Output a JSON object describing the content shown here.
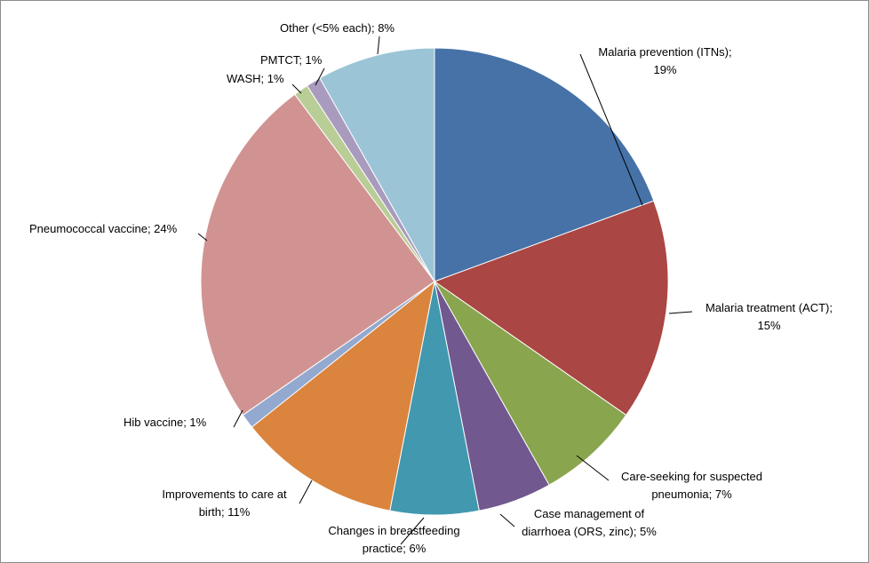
{
  "chart_data": {
    "type": "pie",
    "start_angle_deg": 0,
    "direction": "clockwise",
    "slices": [
      {
        "name": "Malaria prevention (ITNs)",
        "value": 19,
        "color": "#4672A8",
        "label_lines": [
          "Malaria prevention  (ITNs);",
          "19%"
        ]
      },
      {
        "name": "Malaria treatment (ACT)",
        "value": 15,
        "color": "#AA4643",
        "label_lines": [
          "Malaria treatment  (ACT);",
          "15%"
        ]
      },
      {
        "name": "Care-seeking for suspected pneumonia",
        "value": 7,
        "color": "#89A54E",
        "label_lines": [
          "Care-seeking for suspected",
          "pneumonia;  7%"
        ]
      },
      {
        "name": "Case management of diarrhoea (ORS, zinc)",
        "value": 5,
        "color": "#71588F",
        "label_lines": [
          "Case management of",
          "diarrhoea (ORS, zinc); 5%"
        ]
      },
      {
        "name": "Changes in breastfeeding practice",
        "value": 6,
        "color": "#4198AF",
        "label_lines": [
          "Changes in breastfeeding",
          "practice; 6%"
        ]
      },
      {
        "name": "Improvements to care at birth",
        "value": 11,
        "color": "#DB843D",
        "label_lines": [
          "Improvements  to care at",
          "birth;  11%"
        ]
      },
      {
        "name": "Hib vaccine",
        "value": 1,
        "color": "#93A9CF",
        "label_lines": [
          "Hib vaccine; 1%"
        ]
      },
      {
        "name": "Pneumococcal vaccine",
        "value": 24,
        "color": "#D19392",
        "label_lines": [
          "Pneumococcal  vaccine; 24%"
        ]
      },
      {
        "name": "WASH",
        "value": 1,
        "color": "#B9CD96",
        "label_lines": [
          "WASH;  1%"
        ]
      },
      {
        "name": "PMTCT",
        "value": 1,
        "color": "#A99BBD",
        "label_lines": [
          "PMTCT; 1%"
        ]
      },
      {
        "name": "Other (<5% each)",
        "value": 8,
        "color": "#9BC4D6",
        "label_lines": [
          "Other (<5% each); 8%"
        ]
      }
    ]
  }
}
